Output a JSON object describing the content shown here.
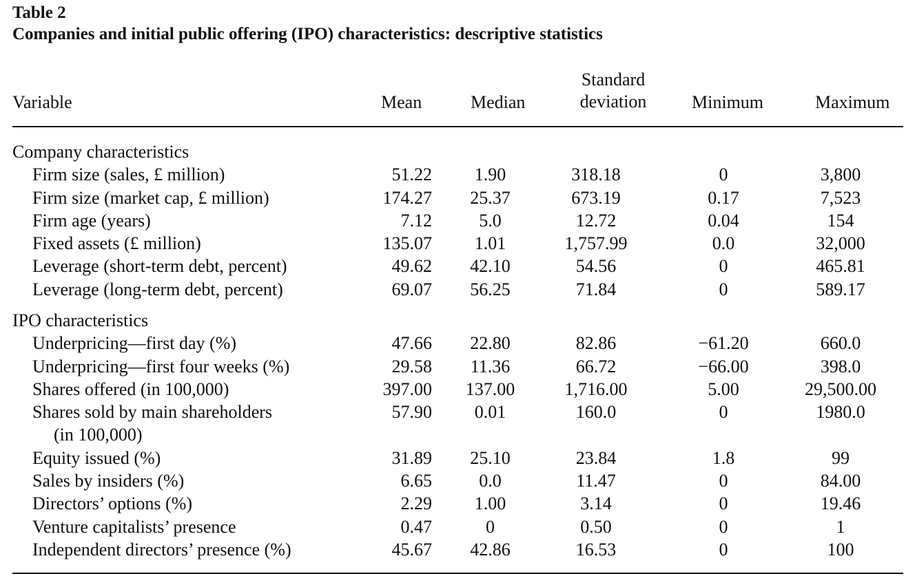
{
  "table": {
    "label": "Table 2",
    "title": "Companies and initial public offering (IPO) characteristics: descriptive statistics",
    "columns": {
      "variable": "Variable",
      "mean": "Mean",
      "median": "Median",
      "std_line1": "Standard",
      "std_line2": "deviation",
      "minimum": "Minimum",
      "maximum": "Maximum"
    },
    "groups": [
      {
        "title": "Company characteristics",
        "rows": [
          {
            "variable": "Firm size (sales, £ million)",
            "mean": "51.22",
            "median": "1.90",
            "std": "318.18",
            "min": "0",
            "max": "3,800"
          },
          {
            "variable": "Firm size (market cap, £ million)",
            "mean": "174.27",
            "median": "25.37",
            "std": "673.19",
            "min": "0.17",
            "max": "7,523"
          },
          {
            "variable": "Firm age (years)",
            "mean": "7.12",
            "median": "5.0",
            "std": "12.72",
            "min": "0.04",
            "max": "154"
          },
          {
            "variable": "Fixed assets (£ million)",
            "mean": "135.07",
            "median": "1.01",
            "std": "1,757.99",
            "min": "0.0",
            "max": "32,000"
          },
          {
            "variable": "Leverage (short-term debt, percent)",
            "mean": "49.62",
            "median": "42.10",
            "std": "54.56",
            "min": "0",
            "max": "465.81"
          },
          {
            "variable": "Leverage (long-term debt, percent)",
            "mean": "69.07",
            "median": "56.25",
            "std": "71.84",
            "min": "0",
            "max": "589.17"
          }
        ]
      },
      {
        "title": "IPO characteristics",
        "rows": [
          {
            "variable": "Underpricing—first day (%)",
            "mean": "47.66",
            "median": "22.80",
            "std": "82.86",
            "min": "−61.20",
            "max": "660.0"
          },
          {
            "variable": "Underpricing—first four weeks (%)",
            "mean": "29.58",
            "median": "11.36",
            "std": "66.72",
            "min": "−66.00",
            "max": "398.0"
          },
          {
            "variable": "Shares offered (in 100,000)",
            "mean": "397.00",
            "median": "137.00",
            "std": "1,716.00",
            "min": "5.00",
            "max": "29,500.00"
          },
          {
            "variable": "Shares sold by main shareholders",
            "variable_cont": "(in 100,000)",
            "mean": "57.90",
            "median": "0.01",
            "std": "160.0",
            "min": "0",
            "max": "1980.0"
          },
          {
            "variable": "Equity issued (%)",
            "mean": "31.89",
            "median": "25.10",
            "std": "23.84",
            "min": "1.8",
            "max": "99"
          },
          {
            "variable": "Sales by insiders (%)",
            "mean": "6.65",
            "median": "0.0",
            "std": "11.47",
            "min": "0",
            "max": "84.00"
          },
          {
            "variable": "Directors’ options (%)",
            "mean": "2.29",
            "median": "1.00",
            "std": "3.14",
            "min": "0",
            "max": "19.46"
          },
          {
            "variable": "Venture capitalists’ presence",
            "mean": "0.47",
            "median": "0",
            "std": "0.50",
            "min": "0",
            "max": "1"
          },
          {
            "variable": "Independent directors’ presence (%)",
            "mean": "45.67",
            "median": "42.86",
            "std": "16.53",
            "min": "0",
            "max": "100"
          }
        ]
      }
    ]
  }
}
